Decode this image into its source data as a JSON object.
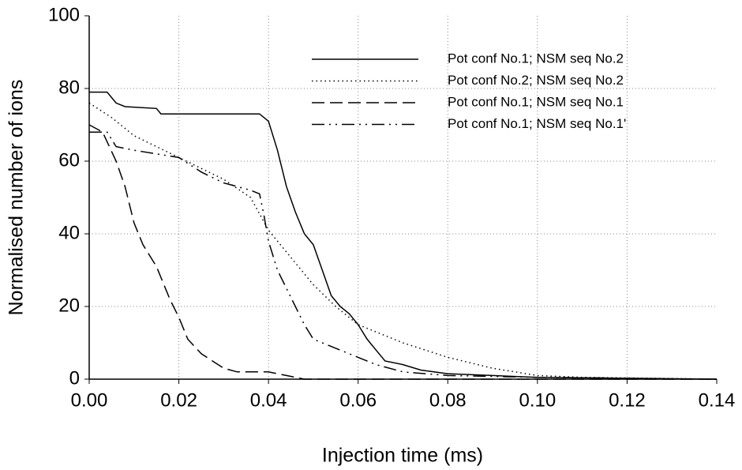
{
  "chart_data": {
    "type": "line",
    "xlabel": "Injection time (ms)",
    "ylabel": "Normalised number of ions",
    "xlim": [
      0,
      0.14
    ],
    "xticks": [
      {
        "value": 0,
        "label": "0.00"
      },
      0.02,
      0.04,
      0.06,
      0.08,
      {
        "value": 0.1,
        "label": "0.10"
      },
      0.12,
      0.14
    ],
    "ylim": [
      0,
      100
    ],
    "yticks": [
      0,
      20,
      40,
      60,
      80,
      100
    ],
    "grid": true,
    "legend": "upper right",
    "series": [
      {
        "name": "Pot conf No.1; NSM seq No.2",
        "color": "#000000",
        "dash": "solid",
        "x": [
          0,
          0.004,
          0.006,
          0.008,
          0.015,
          0.016,
          0.038,
          0.04,
          0.042,
          0.044,
          0.046,
          0.048,
          0.05,
          0.052,
          0.054,
          0.056,
          0.058,
          0.06,
          0.062,
          0.064,
          0.066,
          0.07,
          0.074,
          0.08,
          0.09,
          0.1,
          0.14
        ],
        "values": [
          79,
          79,
          76,
          75,
          74.5,
          73,
          73,
          71,
          63,
          53,
          46,
          40,
          37,
          30,
          23,
          20,
          18,
          15,
          11,
          8,
          5,
          4,
          2.5,
          1.5,
          1,
          0.5,
          0
        ]
      },
      {
        "name": "Pot conf No.2; NSM seq No.2",
        "color": "#000000",
        "dash": "dotted",
        "x": [
          0,
          0.005,
          0.01,
          0.02,
          0.03,
          0.036,
          0.04,
          0.046,
          0.05,
          0.055,
          0.06,
          0.07,
          0.08,
          0.09,
          0.1,
          0.11,
          0.14
        ],
        "values": [
          76,
          72,
          67,
          61,
          55,
          50,
          41,
          32,
          26,
          20,
          15,
          10,
          6,
          3,
          1,
          0.5,
          0
        ]
      },
      {
        "name": "Pot conf No.1; NSM seq No.1",
        "color": "#000000",
        "dash": "dashed",
        "x": [
          0,
          0.003,
          0.006,
          0.008,
          0.01,
          0.012,
          0.015,
          0.018,
          0.02,
          0.022,
          0.025,
          0.03,
          0.033,
          0.04,
          0.044,
          0.048,
          0.14
        ],
        "values": [
          70,
          68,
          60,
          53,
          43,
          37,
          31,
          22,
          17,
          11,
          7,
          3,
          2,
          2,
          1,
          0,
          0
        ]
      },
      {
        "name": "Pot conf No.1; NSM seq No.1'",
        "color": "#000000",
        "dash": "dashdot",
        "x": [
          0,
          0.004,
          0.006,
          0.01,
          0.015,
          0.02,
          0.025,
          0.03,
          0.036,
          0.038,
          0.039,
          0.04,
          0.042,
          0.044,
          0.046,
          0.048,
          0.05,
          0.052,
          0.056,
          0.06,
          0.064,
          0.07,
          0.08,
          0.1,
          0.14
        ],
        "values": [
          68,
          68,
          64,
          63,
          62,
          61,
          57,
          54,
          52,
          51,
          45,
          38,
          30,
          25,
          20,
          15,
          11,
          10,
          8,
          6,
          4,
          2,
          1,
          0.5,
          0
        ]
      }
    ]
  }
}
